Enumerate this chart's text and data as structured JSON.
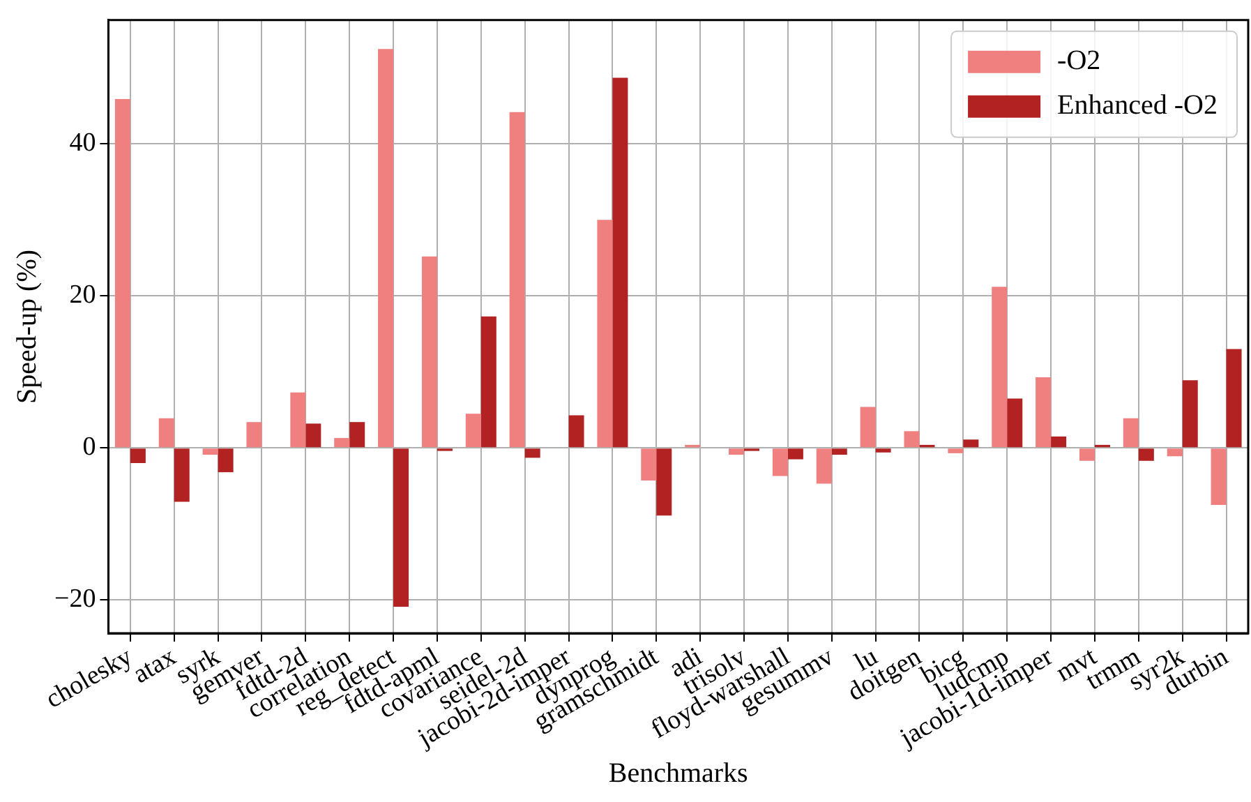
{
  "chart_data": {
    "type": "bar",
    "xlabel": "Benchmarks",
    "ylabel": "Speed-up (%)",
    "categories": [
      "cholesky",
      "atax",
      "syrk",
      "gemver",
      "fdtd-2d",
      "correlation",
      "reg_detect",
      "fdtd-apml",
      "covariance",
      "seidel-2d",
      "jacobi-2d-imper",
      "dynprog",
      "gramschmidt",
      "adi",
      "trisolv",
      "floyd-warshall",
      "gesummv",
      "lu",
      "doitgen",
      "bicg",
      "ludcmp",
      "jacobi-1d-imper",
      "mvt",
      "trmm",
      "syr2k",
      "durbin"
    ],
    "series": [
      {
        "name": "-O2",
        "color": "#f08080",
        "values": [
          45.9,
          3.9,
          -0.9,
          3.4,
          7.3,
          1.3,
          52.5,
          25.2,
          4.5,
          44.2,
          null,
          30.0,
          -4.3,
          0.4,
          -0.9,
          -3.7,
          -4.7,
          5.4,
          2.2,
          -0.7,
          21.2,
          9.3,
          -1.7,
          3.9,
          -1.1,
          -7.5
        ]
      },
      {
        "name": "Enhanced -O2",
        "color": "#b22222",
        "values": [
          -2.0,
          -7.1,
          -3.2,
          null,
          3.2,
          3.4,
          -20.9,
          -0.4,
          17.3,
          -1.3,
          4.3,
          48.7,
          -8.9,
          0.0,
          -0.4,
          -1.5,
          -0.9,
          -0.6,
          0.4,
          1.1,
          6.5,
          1.5,
          0.4,
          -1.7,
          8.9,
          13.0
        ]
      }
    ],
    "ylim": [
      -24.4,
      56.3
    ],
    "yticks": [
      -20,
      0,
      20,
      40
    ],
    "grid": true,
    "legend": "top right"
  }
}
